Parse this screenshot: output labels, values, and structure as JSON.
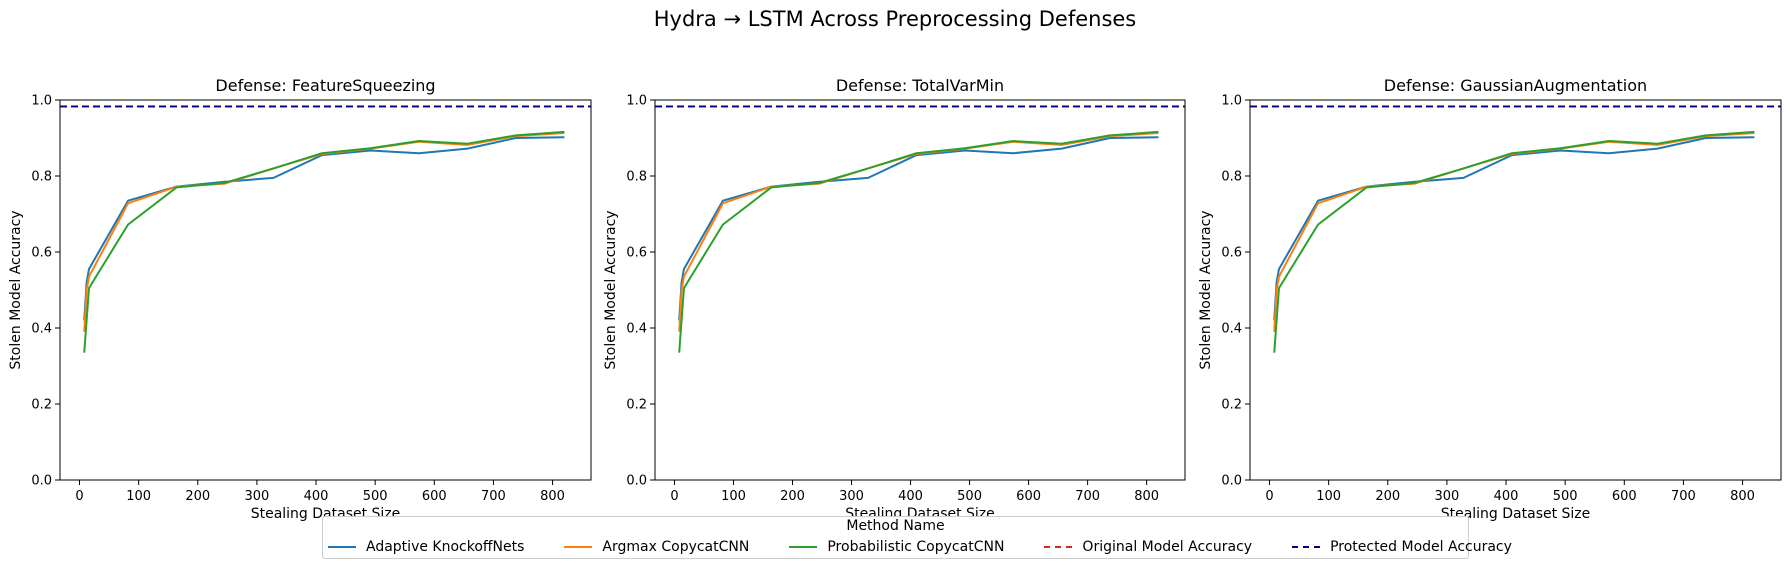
{
  "suptitle": "Hydra → LSTM Across Preprocessing Defenses",
  "legend": {
    "title": "Method Name",
    "items": [
      {
        "label": "Adaptive KnockoffNets",
        "color": "#1f77b4",
        "style": "solid"
      },
      {
        "label": "Argmax CopycatCNN",
        "color": "#ff7f0e",
        "style": "solid"
      },
      {
        "label": "Probabilistic CopycatCNN",
        "color": "#2ca02c",
        "style": "solid"
      },
      {
        "label": "Original Model Accuracy",
        "color": "#d62728",
        "style": "dashed"
      },
      {
        "label": "Protected Model Accuracy",
        "color": "#00008b",
        "style": "dashed"
      }
    ]
  },
  "chart_data": [
    {
      "type": "line",
      "title": "Defense: FeatureSqueezing",
      "xlabel": "Stealing Dataset Size",
      "ylabel": "Stolen Model Accuracy",
      "xlim": [
        -33,
        865
      ],
      "ylim": [
        0.0,
        1.0
      ],
      "xticks": [
        0,
        100,
        200,
        300,
        400,
        500,
        600,
        700,
        800
      ],
      "yticks": [
        0.0,
        0.2,
        0.4,
        0.6,
        0.8,
        1.0
      ],
      "grid": false,
      "x": [
        8,
        12,
        16,
        82,
        164,
        246,
        328,
        410,
        492,
        574,
        656,
        738,
        820
      ],
      "series": [
        {
          "name": "Adaptive KnockoffNets",
          "color": "#1f77b4",
          "values": [
            0.42,
            0.52,
            0.555,
            0.735,
            0.772,
            0.785,
            0.795,
            0.855,
            0.867,
            0.86,
            0.872,
            0.9,
            0.902
          ]
        },
        {
          "name": "Argmax CopycatCNN",
          "color": "#ff7f0e",
          "values": [
            0.39,
            0.5,
            0.535,
            0.728,
            0.772,
            0.78,
            0.82,
            0.858,
            0.872,
            0.89,
            0.882,
            0.905,
            0.913
          ]
        },
        {
          "name": "Probabilistic CopycatCNN",
          "color": "#2ca02c",
          "values": [
            0.335,
            0.42,
            0.505,
            0.672,
            0.77,
            0.782,
            0.82,
            0.86,
            0.873,
            0.892,
            0.885,
            0.907,
            0.916
          ]
        }
      ],
      "hlines": [
        {
          "name": "Original Model Accuracy",
          "color": "#d62728",
          "y": 0.983
        },
        {
          "name": "Protected Model Accuracy",
          "color": "#00008b",
          "y": 0.983
        }
      ]
    },
    {
      "type": "line",
      "title": "Defense: TotalVarMin",
      "xlabel": "Stealing Dataset Size",
      "ylabel": "Stolen Model Accuracy",
      "xlim": [
        -33,
        865
      ],
      "ylim": [
        0.0,
        1.0
      ],
      "xticks": [
        0,
        100,
        200,
        300,
        400,
        500,
        600,
        700,
        800
      ],
      "yticks": [
        0.0,
        0.2,
        0.4,
        0.6,
        0.8,
        1.0
      ],
      "grid": false,
      "x": [
        8,
        12,
        16,
        82,
        164,
        246,
        328,
        410,
        492,
        574,
        656,
        738,
        820
      ],
      "series": [
        {
          "name": "Adaptive KnockoffNets",
          "color": "#1f77b4",
          "values": [
            0.42,
            0.52,
            0.555,
            0.735,
            0.772,
            0.785,
            0.795,
            0.855,
            0.867,
            0.86,
            0.872,
            0.9,
            0.902
          ]
        },
        {
          "name": "Argmax CopycatCNN",
          "color": "#ff7f0e",
          "values": [
            0.39,
            0.5,
            0.535,
            0.728,
            0.772,
            0.78,
            0.82,
            0.858,
            0.872,
            0.89,
            0.882,
            0.905,
            0.913
          ]
        },
        {
          "name": "Probabilistic CopycatCNN",
          "color": "#2ca02c",
          "values": [
            0.335,
            0.42,
            0.505,
            0.672,
            0.77,
            0.782,
            0.82,
            0.86,
            0.873,
            0.892,
            0.885,
            0.907,
            0.916
          ]
        }
      ],
      "hlines": [
        {
          "name": "Original Model Accuracy",
          "color": "#d62728",
          "y": 0.983
        },
        {
          "name": "Protected Model Accuracy",
          "color": "#00008b",
          "y": 0.983
        }
      ]
    },
    {
      "type": "line",
      "title": "Defense: GaussianAugmentation",
      "xlabel": "Stealing Dataset Size",
      "ylabel": "Stolen Model Accuracy",
      "xlim": [
        -33,
        865
      ],
      "ylim": [
        0.0,
        1.0
      ],
      "xticks": [
        0,
        100,
        200,
        300,
        400,
        500,
        600,
        700,
        800
      ],
      "yticks": [
        0.0,
        0.2,
        0.4,
        0.6,
        0.8,
        1.0
      ],
      "grid": false,
      "x": [
        8,
        12,
        16,
        82,
        164,
        246,
        328,
        410,
        492,
        574,
        656,
        738,
        820
      ],
      "series": [
        {
          "name": "Adaptive KnockoffNets",
          "color": "#1f77b4",
          "values": [
            0.42,
            0.52,
            0.555,
            0.735,
            0.772,
            0.785,
            0.795,
            0.855,
            0.867,
            0.86,
            0.872,
            0.9,
            0.902
          ]
        },
        {
          "name": "Argmax CopycatCNN",
          "color": "#ff7f0e",
          "values": [
            0.39,
            0.5,
            0.535,
            0.728,
            0.772,
            0.78,
            0.82,
            0.858,
            0.872,
            0.89,
            0.882,
            0.905,
            0.913
          ]
        },
        {
          "name": "Probabilistic CopycatCNN",
          "color": "#2ca02c",
          "values": [
            0.335,
            0.42,
            0.505,
            0.672,
            0.77,
            0.782,
            0.82,
            0.86,
            0.873,
            0.892,
            0.885,
            0.907,
            0.916
          ]
        }
      ],
      "hlines": [
        {
          "name": "Original Model Accuracy",
          "color": "#d62728",
          "y": 0.983
        },
        {
          "name": "Protected Model Accuracy",
          "color": "#00008b",
          "y": 0.983
        }
      ]
    }
  ]
}
